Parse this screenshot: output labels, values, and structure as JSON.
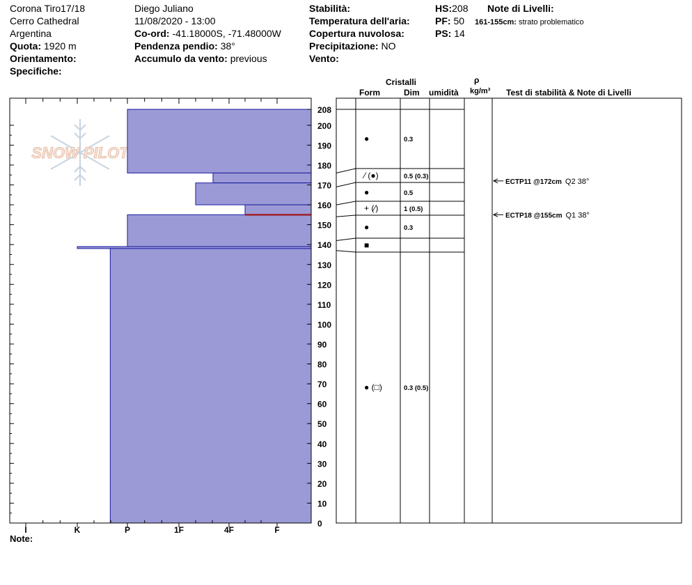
{
  "header": {
    "location": "Corona Tiro17/18",
    "area": "Cerro Cathedral",
    "country": "Argentina",
    "elevation_label": "Quota:",
    "elevation_value": "1920 m",
    "aspect_label": "Orientamento:",
    "specifics_label": "Specifiche:",
    "observer": "Diego Juliano",
    "datetime": "11/08/2020 - 13:00",
    "coord_label": "Co-ord:",
    "coord_value": "-41.18000S, -71.48000W",
    "slope_label": "Pendenza pendio:",
    "slope_value": "38°",
    "wind_loading_label": "Accumulo da vento:",
    "wind_loading_value": "previous",
    "stability_label": "Stabilità:",
    "air_temp_label": "Temperatura dell'aria:",
    "cloud_label": "Copertura nuvolosa:",
    "precip_label": "Precipitazione:",
    "precip_value": "NO",
    "wind_label": "Vento:",
    "hs_label": "HS:",
    "hs_value": "208",
    "pf_label": "PF:",
    "pf_value": "50",
    "ps_label": "PS:",
    "ps_value": "14",
    "layer_notes_label": "Note di Livelli:",
    "layer_note_range": "161-155cm:",
    "layer_note_text": "strato problematico"
  },
  "columns": {
    "crystals": "Cristalli",
    "form": "Form",
    "dim": "Dim",
    "humidity": "umidità",
    "rho": "ρ",
    "density_unit": "kg/m³",
    "stability_notes": "Test di stabilità & Note di Livelli"
  },
  "footer": {
    "notes_label": "Note:"
  },
  "logo": {
    "text": "SNOW PILOT"
  },
  "colors": {
    "layer_fill": "#9b9ad6",
    "layer_stroke": "#1a1aa0",
    "problem_layer": "#a0202a"
  },
  "chart_data": {
    "type": "bar",
    "title": "",
    "y_axis": {
      "min": 0,
      "max": 208,
      "ticks": [
        0,
        10,
        20,
        30,
        40,
        50,
        60,
        70,
        80,
        90,
        100,
        110,
        120,
        130,
        140,
        150,
        160,
        170,
        180,
        190,
        200,
        208
      ]
    },
    "hardness_scale": [
      "I",
      "K",
      "P",
      "1F",
      "4F",
      "F"
    ],
    "layers": [
      {
        "bottom": 176,
        "top": 208,
        "hardness": "P"
      },
      {
        "bottom": 171,
        "top": 176,
        "hardness": "4F-"
      },
      {
        "bottom": 160,
        "top": 171,
        "hardness": "1F+"
      },
      {
        "bottom": 155,
        "top": 160,
        "hardness": "4F+"
      },
      {
        "bottom": 139,
        "top": 155,
        "hardness": "P"
      },
      {
        "bottom": 138,
        "top": 139,
        "hardness": "K"
      },
      {
        "bottom": 0,
        "top": 138,
        "hardness": "P-"
      }
    ],
    "problem_layer_height": 155,
    "grain_boundaries": [
      176,
      169,
      160,
      154,
      142,
      137
    ],
    "grain_rows": [
      {
        "form": "●",
        "dim": "0.3",
        "at": 190
      },
      {
        "form": "⁄ (●)",
        "dim": "0.5 (0.3)",
        "at": 173
      },
      {
        "form": "●",
        "dim": "0.5",
        "at": 165
      },
      {
        "form": "+ (⁄)",
        "dim": "1 (0.5)",
        "at": 157
      },
      {
        "form": "●",
        "dim": "0.3",
        "at": 148
      },
      {
        "form": "■",
        "dim": "",
        "at": 139
      },
      {
        "form": "● (□)",
        "dim": "0.3 (0.5)",
        "at": 68
      }
    ],
    "stability_tests": [
      {
        "at": 172,
        "code": "ECTP11 @172cm",
        "extra": "Q2 38°"
      },
      {
        "at": 155,
        "code": "ECTP18 @155cm",
        "extra": "Q1 38°"
      }
    ]
  }
}
